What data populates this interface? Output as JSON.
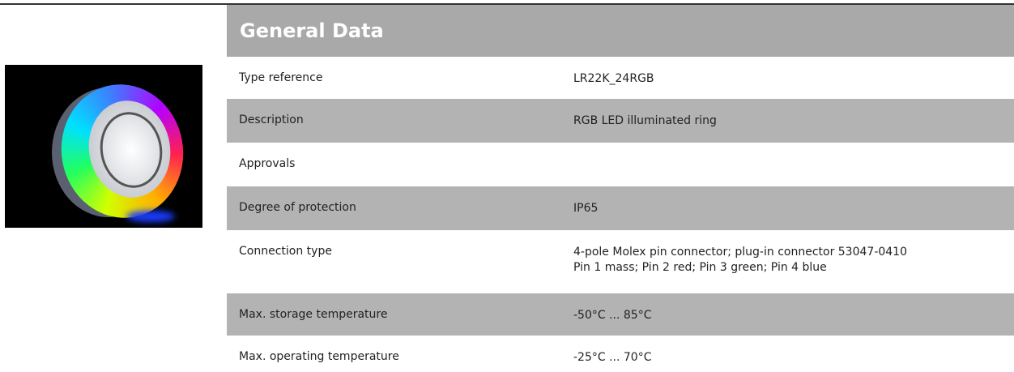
{
  "header": {
    "title": "General Data"
  },
  "table": {
    "rows": [
      {
        "label": "Type reference",
        "value": [
          "LR22K_24RGB"
        ]
      },
      {
        "label": "Description",
        "value": [
          "RGB LED illuminated ring"
        ]
      },
      {
        "label": "Approvals"
      },
      {
        "label": "Degree of protection",
        "value": [
          "IP65"
        ]
      },
      {
        "label": "Connection type",
        "value": [
          "4-pole Molex pin connector; plug-in connector 53047-0410",
          "Pin 1 mass; Pin 2 red; Pin 3 green; Pin 4 blue"
        ]
      },
      {
        "label": "Max. storage temperature",
        "value": [
          "-50°C ... 85°C"
        ]
      },
      {
        "label": "Max. operating temperature",
        "value": [
          "-25°C ... 70°C"
        ]
      }
    ]
  }
}
